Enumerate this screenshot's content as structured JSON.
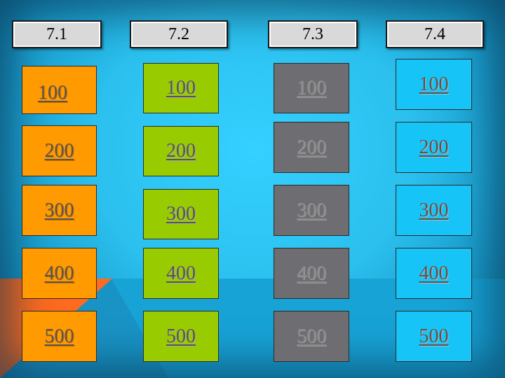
{
  "categories": [
    "7.1",
    "7.2",
    "7.3",
    "7.4"
  ],
  "rows": [
    [
      "100",
      "100",
      "100",
      "100"
    ],
    [
      "200",
      "200",
      "200",
      "200"
    ],
    [
      "300",
      "300",
      "300",
      "300"
    ],
    [
      "400",
      "400",
      "400",
      "400"
    ],
    [
      "500",
      "500",
      "500",
      "500"
    ]
  ],
  "colors": {
    "column_1": "#ff9a00",
    "column_2": "#99cc00",
    "column_3": "#6d6d72",
    "column_4": "#16c4f7",
    "header": "#d9d9d9",
    "background": "#2bc0ee",
    "accent": "#ff6a1f"
  }
}
